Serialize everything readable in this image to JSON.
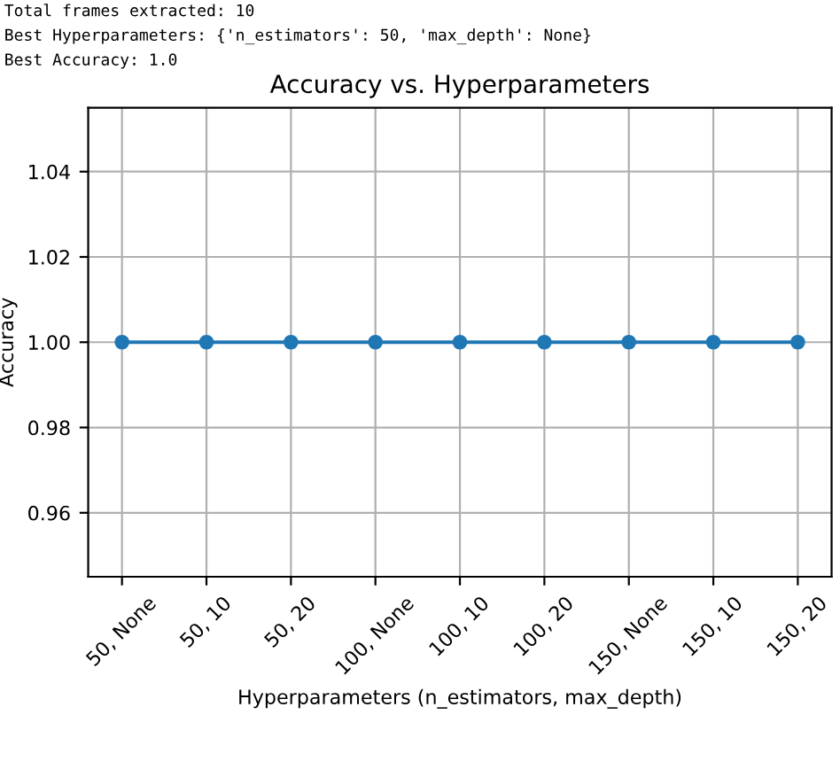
{
  "chart_data": {
    "type": "line",
    "title": "Accuracy vs. Hyperparameters",
    "xlabel": "Hyperparameters (n_estimators, max_depth)",
    "ylabel": "Accuracy",
    "annotations": [
      "Total frames extracted: 10",
      "Best Hyperparameters: {'n_estimators': 50, 'max_depth': None}",
      "Best Accuracy: 1.0"
    ],
    "categories": [
      "50, None",
      "50, 10",
      "50, 20",
      "100, None",
      "100, 10",
      "100, 20",
      "150, None",
      "150, 10",
      "150, 20"
    ],
    "series": [
      {
        "color": "#1f77b4",
        "values": [
          1.0,
          1.0,
          1.0,
          1.0,
          1.0,
          1.0,
          1.0,
          1.0,
          1.0
        ]
      }
    ],
    "ylim": [
      0.945,
      1.055
    ],
    "yticks": [
      {
        "value": 0.96,
        "label": "0.96"
      },
      {
        "value": 0.98,
        "label": "0.98"
      },
      {
        "value": 1.0,
        "label": "1.00"
      },
      {
        "value": 1.02,
        "label": "1.02"
      },
      {
        "value": 1.04,
        "label": "1.04"
      }
    ],
    "grid": true,
    "marker": "circle",
    "line_style": "solid"
  }
}
